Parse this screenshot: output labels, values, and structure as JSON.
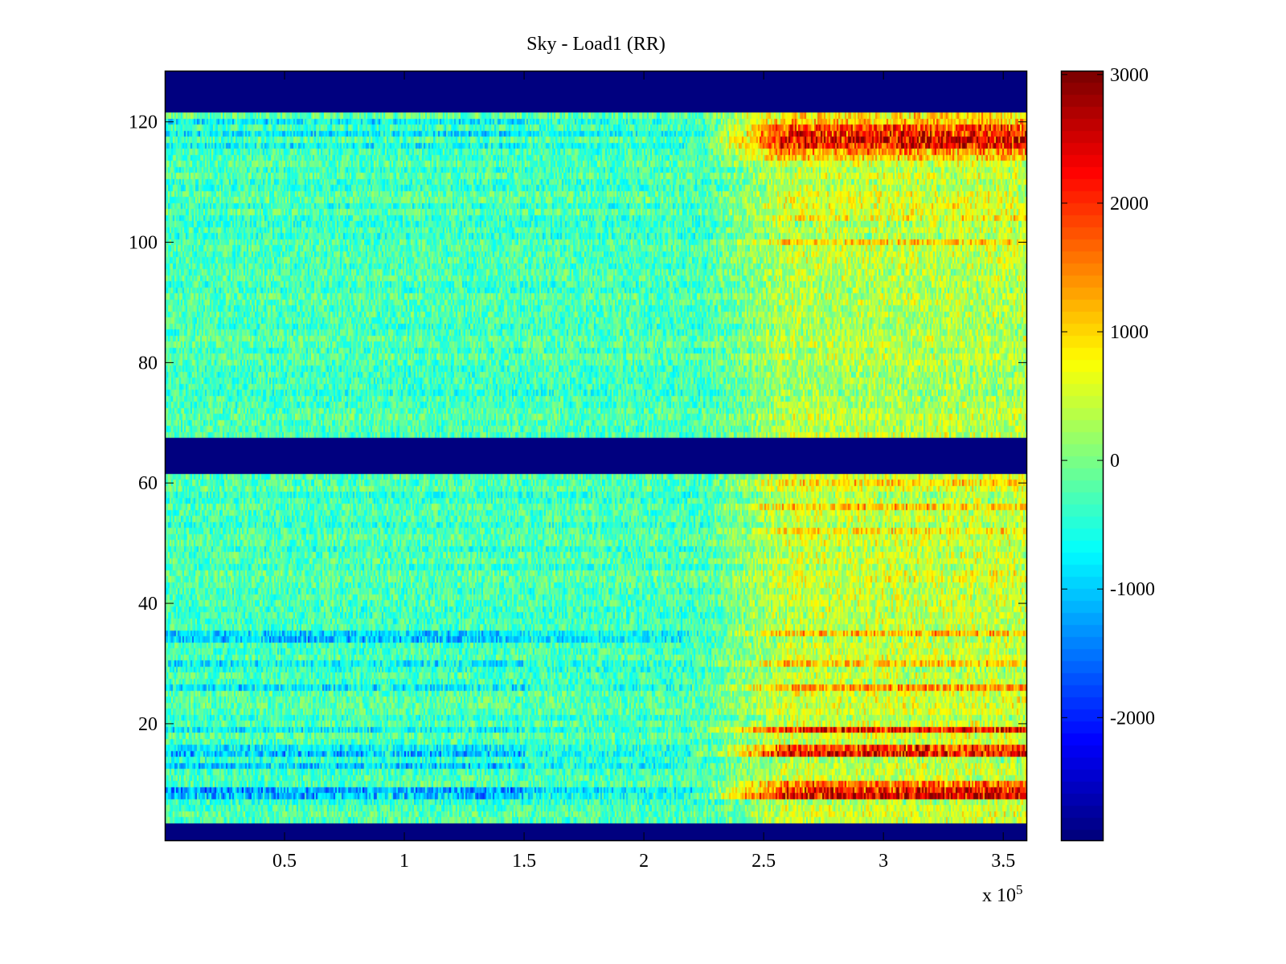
{
  "chart_data": {
    "type": "heatmap",
    "title": "Sky - Load1 (RR)",
    "xlabel": "",
    "ylabel": "",
    "x_multiplier": "x 10",
    "x_multiplier_exp": "5",
    "xlim": [
      0,
      3.6
    ],
    "ylim": [
      0.5,
      128.5
    ],
    "xticks": [
      0.5,
      1,
      1.5,
      2,
      2.5,
      3,
      3.5
    ],
    "xtick_labels": [
      "0.5",
      "1",
      "1.5",
      "2",
      "2.5",
      "3",
      "3.5"
    ],
    "yticks": [
      20,
      40,
      60,
      80,
      100,
      120
    ],
    "ytick_labels": [
      "20",
      "40",
      "60",
      "80",
      "100",
      "120"
    ],
    "colormap": "jet",
    "clim": [
      -2960,
      3030
    ],
    "colorbar_ticks": [
      3000,
      2000,
      1000,
      0,
      -1000,
      -2000
    ],
    "colorbar_tick_labels": [
      "3000",
      "2000",
      "1000",
      "0",
      "-1000",
      "-2000"
    ],
    "n_rows": 128,
    "masked_rows": [
      [
        1,
        3
      ],
      [
        62,
        67
      ],
      [
        122,
        128
      ]
    ],
    "masked_value": -2960,
    "background_value": -300,
    "noise_amplitude": 500,
    "rise_start_x": 2.25,
    "rise_end_x": 2.6,
    "default_rise": 800,
    "row_rise": {
      "8": 2900,
      "9": 2900,
      "10": 2000,
      "15": 2700,
      "16": 2400,
      "19": 2700,
      "26": 1700,
      "30": 1300,
      "35": 1700,
      "52": 1300,
      "56": 1400,
      "60": 1300,
      "100": 1300,
      "104": 1300,
      "106": 1200,
      "114": 1500,
      "115": 1900,
      "116": 2700,
      "117": 2900,
      "118": 2800,
      "119": 2400,
      "120": 1500,
      "121": 1200
    },
    "row_cold_offset": {
      "8": -900,
      "9": -800,
      "13": -700,
      "15": -900,
      "16": -500,
      "19": -500,
      "26": -600,
      "30": -500,
      "34": -600,
      "35": -500,
      "116": -400,
      "118": -400,
      "120": -500
    }
  }
}
